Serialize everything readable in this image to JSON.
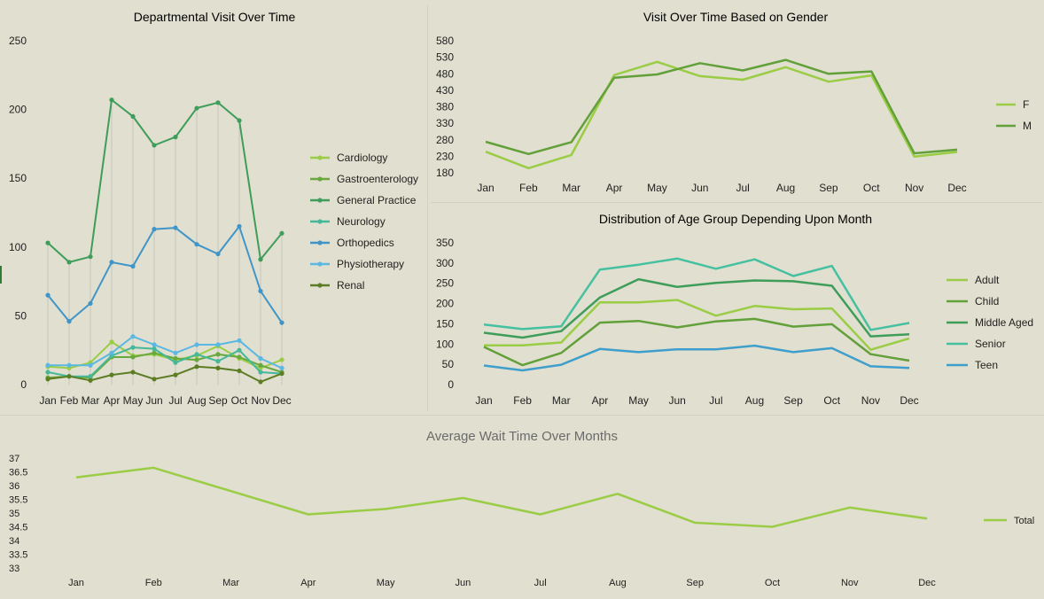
{
  "colors": {
    "background": "#e1dfcf",
    "text": "#1f1f1f",
    "title": "#000000",
    "subtitle_gray": "#6b6b6b",
    "droplines": "#c8c6b8"
  },
  "chart_data": [
    {
      "id": "departmental",
      "type": "line",
      "title": "Departmental Visit Over Time",
      "categories": [
        "Jan",
        "Feb",
        "Mar",
        "Apr",
        "May",
        "Jun",
        "Jul",
        "Aug",
        "Sep",
        "Oct",
        "Nov",
        "Dec"
      ],
      "ylim": [
        0,
        250
      ],
      "yticks": [
        0,
        50,
        100,
        150,
        200,
        250
      ],
      "markers": true,
      "drop_lines": true,
      "legend": "right",
      "series": [
        {
          "name": "Cardiology",
          "color": "#9acd45",
          "values": [
            13,
            12,
            16,
            31,
            21,
            22,
            18,
            21,
            28,
            19,
            12,
            18
          ]
        },
        {
          "name": "Gastroenterology",
          "color": "#68a83c",
          "values": [
            5,
            6,
            5,
            20,
            20,
            23,
            19,
            18,
            22,
            20,
            14,
            9
          ]
        },
        {
          "name": "General Practice",
          "color": "#3f9d5a",
          "values": [
            103,
            89,
            93,
            207,
            195,
            174,
            180,
            201,
            205,
            192,
            91,
            110
          ]
        },
        {
          "name": "Neurology",
          "color": "#45b89a",
          "values": [
            9,
            6,
            6,
            21,
            27,
            26,
            16,
            22,
            17,
            25,
            9,
            8
          ]
        },
        {
          "name": "Orthopedics",
          "color": "#3f95c8",
          "values": [
            65,
            46,
            59,
            89,
            86,
            113,
            114,
            102,
            95,
            115,
            68,
            45
          ]
        },
        {
          "name": "Physiotherapy",
          "color": "#5ab8e2",
          "values": [
            14,
            14,
            14,
            23,
            35,
            29,
            23,
            29,
            29,
            32,
            19,
            12
          ]
        },
        {
          "name": "Renal",
          "color": "#5c7d24",
          "values": [
            4,
            6,
            3,
            7,
            9,
            4,
            7,
            13,
            12,
            10,
            2,
            8
          ]
        }
      ]
    },
    {
      "id": "gender",
      "type": "line",
      "title": "Visit Over Time Based on Gender",
      "categories": [
        "Jan",
        "Feb",
        "Mar",
        "Apr",
        "May",
        "Jun",
        "Jul",
        "Aug",
        "Sep",
        "Oct",
        "Nov",
        "Dec"
      ],
      "ylim": [
        180,
        580
      ],
      "yticks": [
        180,
        230,
        280,
        330,
        380,
        430,
        480,
        530,
        580
      ],
      "legend": "right",
      "series": [
        {
          "name": "F",
          "color": "#9acd45",
          "values": [
            244,
            194,
            234,
            476,
            516,
            473,
            462,
            500,
            456,
            475,
            229,
            243
          ]
        },
        {
          "name": "M",
          "color": "#62a03a",
          "values": [
            274,
            237,
            273,
            468,
            478,
            512,
            490,
            522,
            480,
            487,
            239,
            250
          ]
        }
      ]
    },
    {
      "id": "agegroup",
      "type": "line",
      "title": "Distribution of Age Group Depending Upon Month",
      "categories": [
        "Jan",
        "Feb",
        "Mar",
        "Apr",
        "May",
        "Jun",
        "Jul",
        "Aug",
        "Sep",
        "Oct",
        "Nov",
        "Dec"
      ],
      "ylim": [
        0,
        350
      ],
      "yticks": [
        0,
        50,
        100,
        150,
        200,
        250,
        300,
        350
      ],
      "legend": "right",
      "series": [
        {
          "name": "Adult",
          "color": "#9acd45",
          "values": [
            97,
            97,
            104,
            203,
            203,
            209,
            170,
            194,
            186,
            188,
            86,
            114
          ]
        },
        {
          "name": "Child",
          "color": "#62a03a",
          "values": [
            93,
            48,
            78,
            153,
            157,
            141,
            156,
            162,
            143,
            149,
            75,
            59
          ]
        },
        {
          "name": "Middle Aged",
          "color": "#3f9d5a",
          "values": [
            128,
            116,
            132,
            215,
            260,
            241,
            251,
            257,
            255,
            244,
            119,
            124
          ]
        },
        {
          "name": "Senior",
          "color": "#45c0a0",
          "values": [
            148,
            137,
            144,
            284,
            296,
            311,
            286,
            309,
            268,
            293,
            135,
            152
          ]
        },
        {
          "name": "Teen",
          "color": "#3f9fcc",
          "values": [
            47,
            35,
            49,
            88,
            80,
            87,
            87,
            96,
            80,
            90,
            45,
            41
          ]
        }
      ]
    },
    {
      "id": "waittime",
      "type": "line",
      "title": "Average Wait Time Over Months",
      "categories": [
        "Jan",
        "Feb",
        "Mar",
        "Apr",
        "May",
        "Jun",
        "Jul",
        "Aug",
        "Sep",
        "Oct",
        "Nov",
        "Dec"
      ],
      "ylim": [
        33,
        37
      ],
      "yticks": [
        33,
        33.5,
        34,
        34.5,
        35,
        35.5,
        36,
        36.5,
        37
      ],
      "legend": "right",
      "series": [
        {
          "name": "Total",
          "color": "#9acd45",
          "values": [
            36.3,
            36.65,
            35.8,
            34.95,
            35.15,
            35.55,
            34.95,
            35.7,
            34.65,
            34.5,
            35.2,
            34.8
          ]
        }
      ]
    }
  ]
}
